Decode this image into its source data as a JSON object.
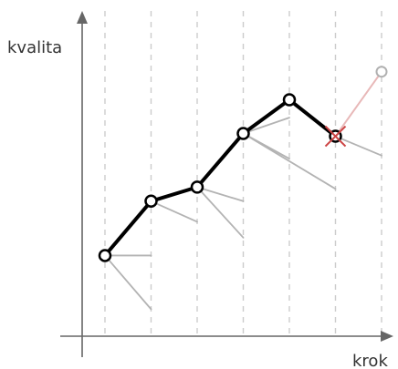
{
  "axes": {
    "y_label": "kvalita",
    "x_label": "krok"
  },
  "colors": {
    "axis": "#666666",
    "guide": "#cccccc",
    "branch": "#b3b3b3",
    "path": "#000000",
    "rejected": "#e8b8b8",
    "rejected_node": "#b0b0b0",
    "cross": "#cc4444"
  },
  "path": {
    "steps": [
      0,
      1,
      2,
      3,
      4,
      5
    ],
    "quality": [
      2.3,
      3.85,
      4.25,
      5.78,
      6.74,
      5.7
    ]
  },
  "rejected": {
    "from_step": 5,
    "to_step": 6,
    "quality": 7.54
  },
  "branches": [
    {
      "from_step": 0,
      "targets": [
        [
          1,
          2.3
        ],
        [
          1,
          0.77
        ]
      ]
    },
    {
      "from_step": 1,
      "targets": [
        [
          2,
          3.26
        ]
      ]
    },
    {
      "from_step": 2,
      "targets": [
        [
          3,
          3.85
        ],
        [
          3,
          2.81
        ]
      ]
    },
    {
      "from_step": 3,
      "targets": [
        [
          4,
          6.23
        ],
        [
          4,
          5.06
        ],
        [
          5,
          4.2
        ]
      ]
    },
    {
      "from_step": 5,
      "targets": [
        [
          6,
          5.15
        ]
      ]
    }
  ]
}
